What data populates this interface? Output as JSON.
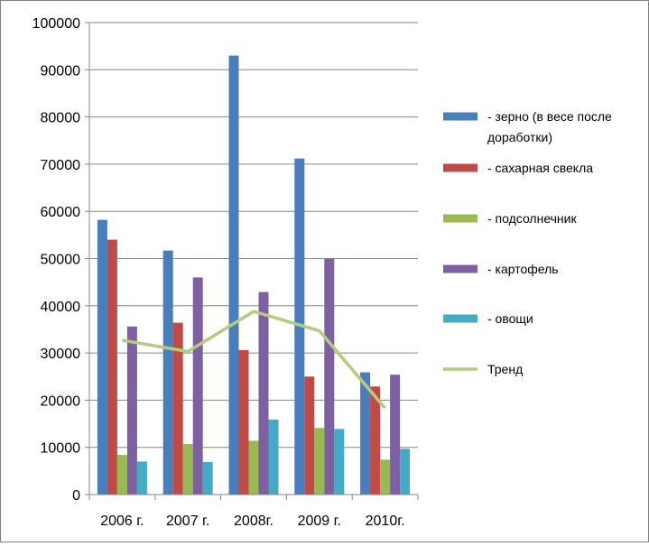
{
  "chart_data": {
    "type": "bar",
    "categories": [
      "2006 г.",
      "2007 г.",
      "2008г.",
      "2009 г.",
      "2010г."
    ],
    "series": [
      {
        "name": "- зерно (в весе после доработки)",
        "legend_lines": [
          "- зерно (в весе после",
          "доработки)"
        ],
        "color": "#4A7EBB",
        "values": [
          58200,
          51700,
          93000,
          71200,
          25900
        ]
      },
      {
        "name": "- сахарная свекла",
        "color": "#BE4B48",
        "values": [
          54000,
          36400,
          30600,
          25000,
          22900
        ]
      },
      {
        "name": "- подсолнечник",
        "color": "#98B954",
        "values": [
          8400,
          10700,
          11400,
          14100,
          7400
        ]
      },
      {
        "name": "- картофель",
        "color": "#7D60A0",
        "values": [
          35600,
          46000,
          42900,
          49900,
          25400
        ]
      },
      {
        "name": "- овощи",
        "color": "#46AAC5",
        "values": [
          7000,
          6900,
          15900,
          13900,
          9700
        ]
      }
    ],
    "trend": {
      "name": "Тренд",
      "type": "line",
      "color": "#B3CC82",
      "values": [
        32700,
        30300,
        38800,
        34700,
        18300
      ]
    },
    "y_ticks": [
      "0",
      "10000",
      "20000",
      "30000",
      "40000",
      "50000",
      "60000",
      "70000",
      "80000",
      "90000",
      "100000"
    ],
    "ylim": [
      0,
      100000
    ],
    "grid": true,
    "legend_position": "right"
  }
}
